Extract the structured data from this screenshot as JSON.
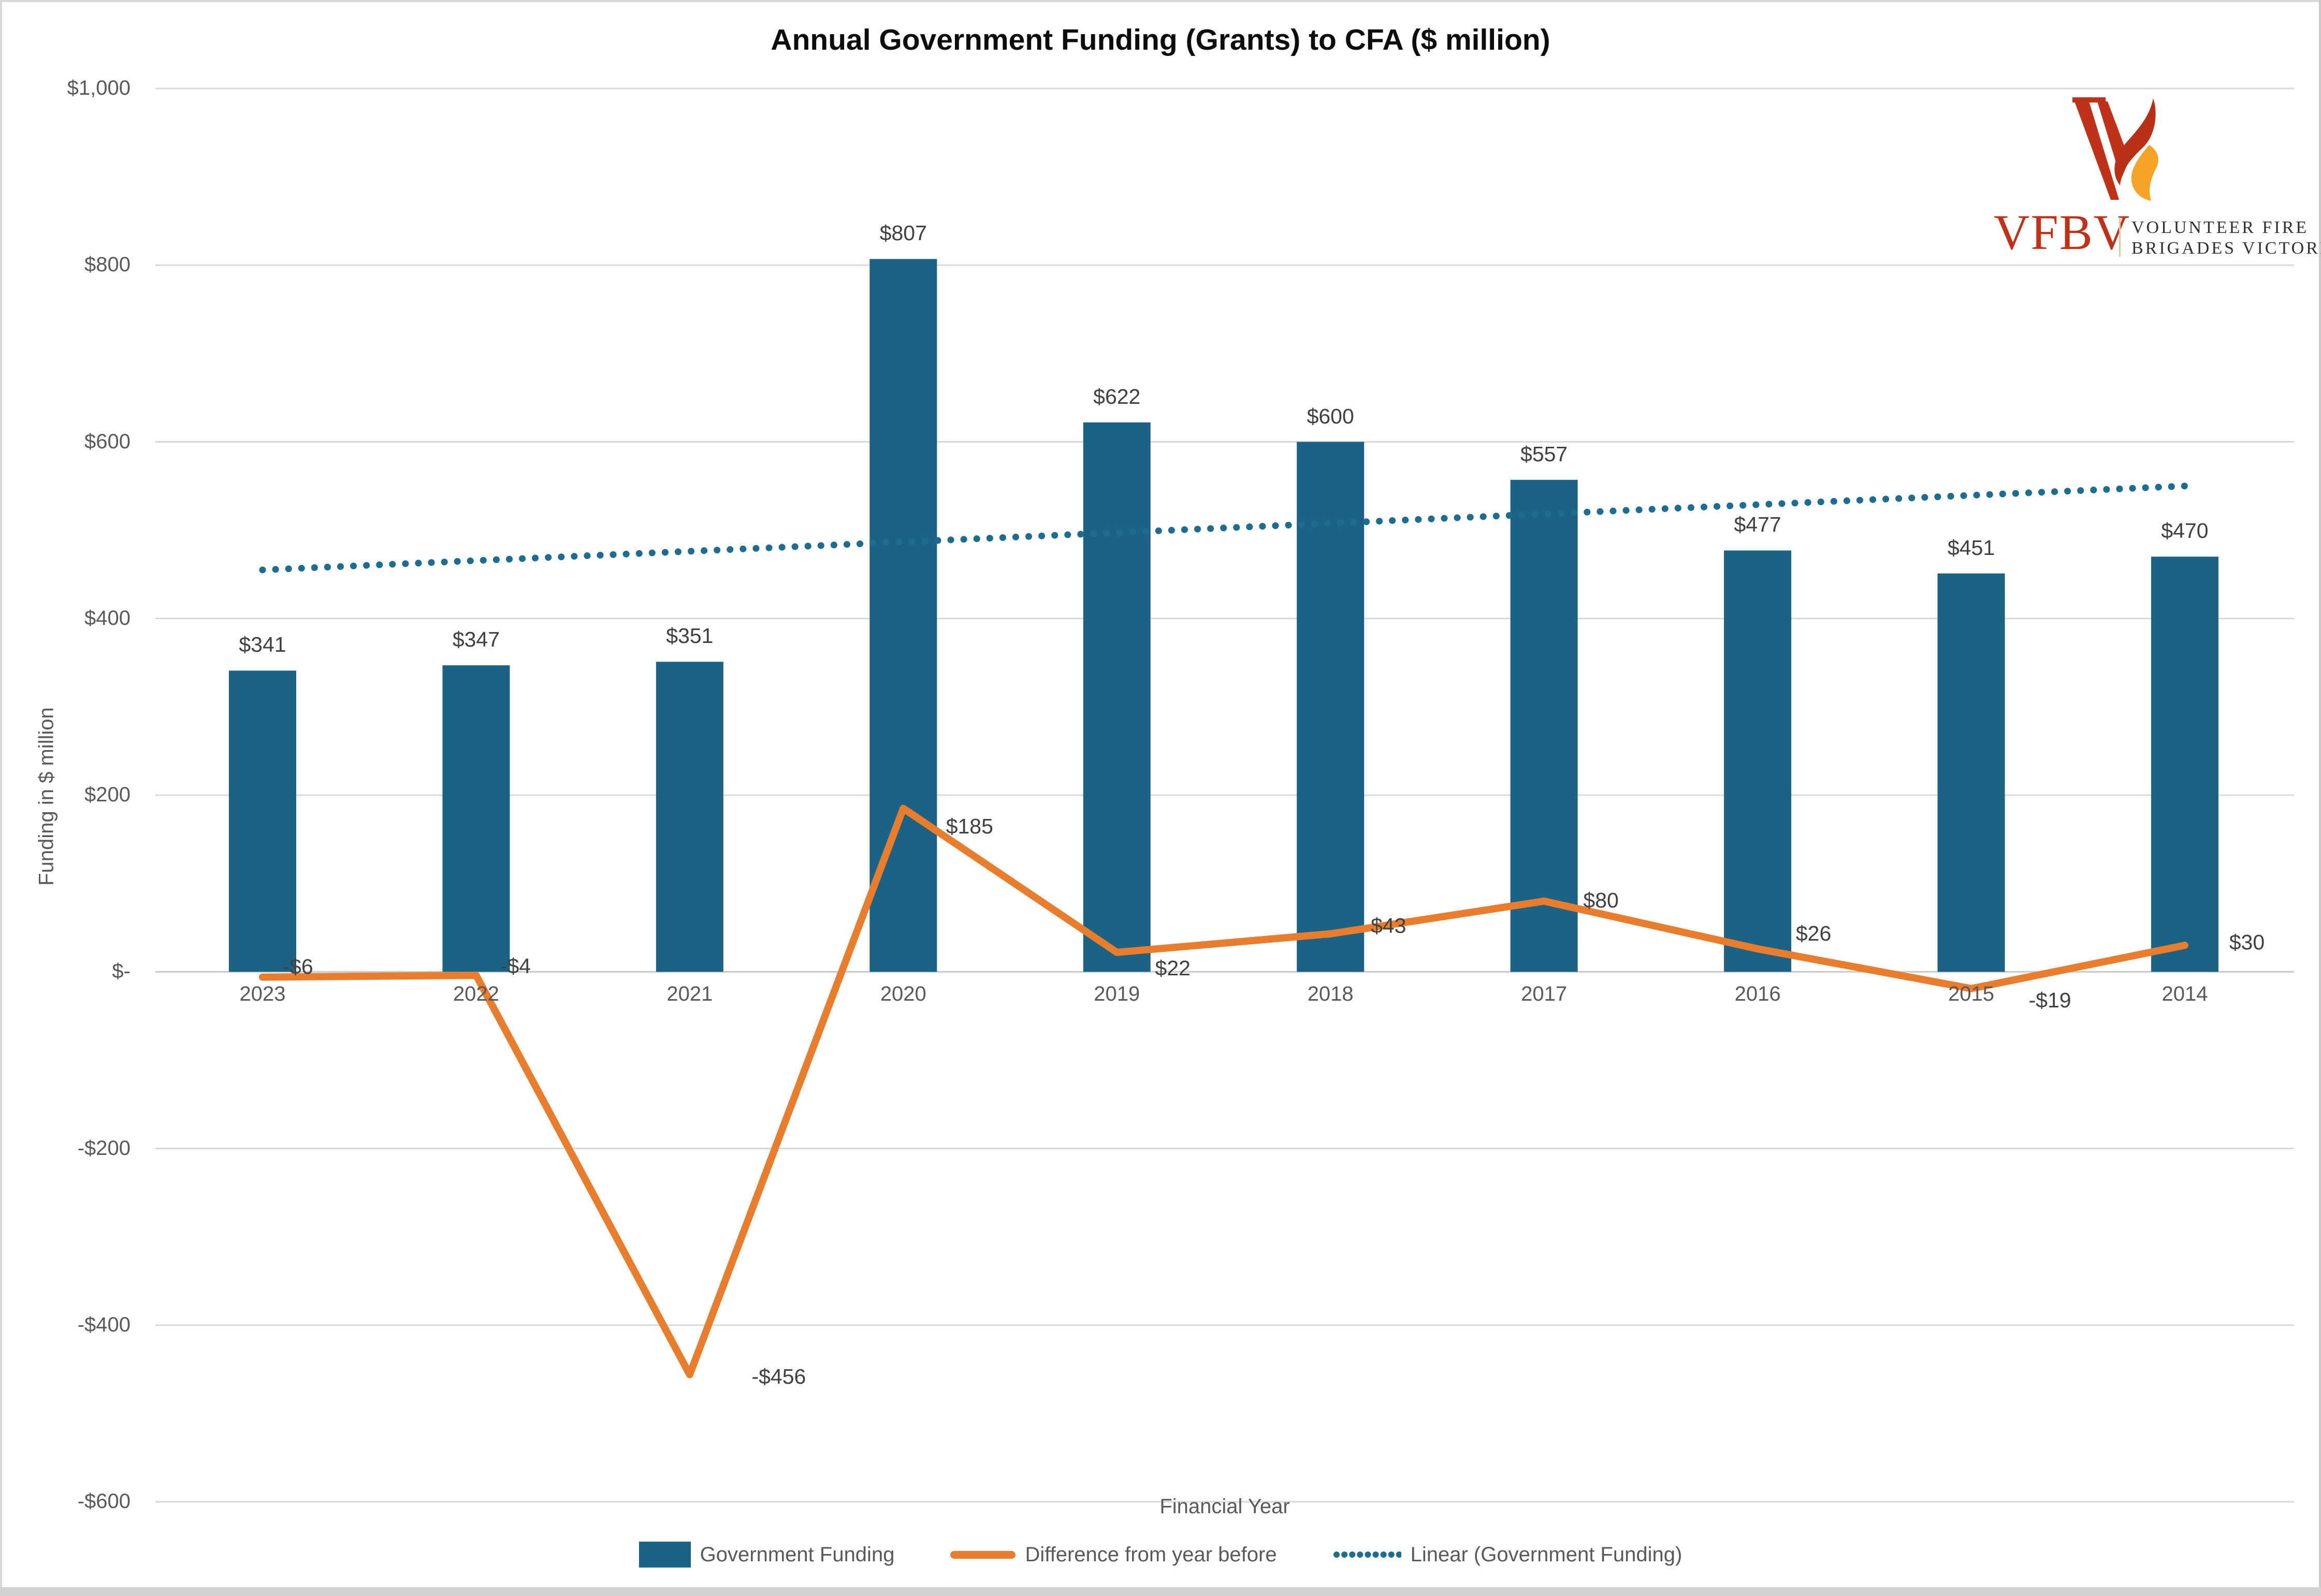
{
  "title": "Annual Government Funding (Grants) to CFA ($ million)",
  "y_axis": {
    "title": "Funding in $ million",
    "tick_labels": [
      "$1,000",
      "$800",
      "$600",
      "$400",
      "$200",
      "$-",
      "-$200",
      "-$400",
      "-$600"
    ],
    "tick_values": [
      1000,
      800,
      600,
      400,
      200,
      0,
      -200,
      -400,
      -600
    ]
  },
  "x_axis": {
    "title": "Financial Year"
  },
  "legend": {
    "items": [
      {
        "label": "Government Funding",
        "type": "bar"
      },
      {
        "label": "Difference from year before",
        "type": "line"
      },
      {
        "label": "Linear (Government Funding)",
        "type": "dotted"
      }
    ]
  },
  "logo": {
    "acronym": "VFBV",
    "name_line1": "VOLUNTEER FIRE",
    "name_line2": "BRIGADES VICTORIA"
  },
  "colors": {
    "bar": "#1b6284",
    "line": "#e87d2e",
    "trend": "#1e6c92",
    "grid": "#d9d9d9",
    "zero_grid": "#c9c9c9",
    "data_label": "#404040",
    "axis_text": "#595959",
    "logo_red": "#bf3119",
    "logo_flame_red": "#b93016",
    "logo_flame_orange": "#f6a326",
    "logo_text": "#332f2c"
  },
  "chart_data": {
    "type": "bar",
    "title": "Annual Government Funding (Grants) to CFA ($ million)",
    "xlabel": "Financial Year",
    "ylabel": "Funding in $ million",
    "ylim": [
      -600,
      1000
    ],
    "grid": true,
    "legend_position": "bottom",
    "categories": [
      "2023",
      "2022",
      "2021",
      "2020",
      "2019",
      "2018",
      "2017",
      "2016",
      "2015",
      "2014"
    ],
    "series": [
      {
        "name": "Government Funding",
        "type": "bar",
        "values": [
          341,
          347,
          351,
          807,
          622,
          600,
          557,
          477,
          451,
          470
        ],
        "labels": [
          "$341",
          "$347",
          "$351",
          "$807",
          "$622",
          "$600",
          "$557",
          "$477",
          "$451",
          "$470"
        ]
      },
      {
        "name": "Difference from year before",
        "type": "line",
        "values": [
          -6,
          -4,
          -456,
          185,
          22,
          43,
          80,
          26,
          -19,
          30
        ],
        "labels": [
          "-$6",
          "-$4",
          "-$456",
          "$185",
          "$22",
          "$43",
          "$80",
          "$26",
          "-$19",
          "$30"
        ]
      },
      {
        "name": "Linear (Government Funding)",
        "type": "trendline",
        "endpoints": [
          455,
          550
        ]
      }
    ]
  }
}
